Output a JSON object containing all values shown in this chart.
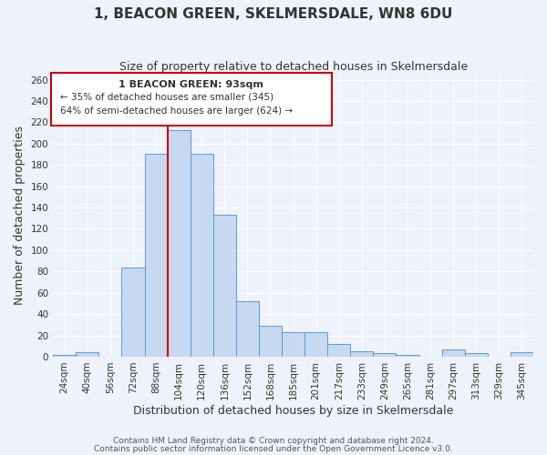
{
  "title": "1, BEACON GREEN, SKELMERSDALE, WN8 6DU",
  "subtitle": "Size of property relative to detached houses in Skelmersdale",
  "xlabel": "Distribution of detached houses by size in Skelmersdale",
  "ylabel": "Number of detached properties",
  "categories": [
    "24sqm",
    "40sqm",
    "56sqm",
    "72sqm",
    "88sqm",
    "104sqm",
    "120sqm",
    "136sqm",
    "152sqm",
    "168sqm",
    "185sqm",
    "201sqm",
    "217sqm",
    "233sqm",
    "249sqm",
    "265sqm",
    "281sqm",
    "297sqm",
    "313sqm",
    "329sqm",
    "345sqm"
  ],
  "bar_heights": [
    2,
    4,
    0,
    84,
    190,
    213,
    190,
    133,
    52,
    29,
    23,
    23,
    12,
    5,
    3,
    2,
    0,
    7,
    3,
    0,
    4
  ],
  "bar_color": "#c6d9f0",
  "bar_edge_color": "#5b9bd5",
  "bar_width": 1.0,
  "vline_x": 4.5,
  "vline_color": "#cc0000",
  "annotation_title": "1 BEACON GREEN: 93sqm",
  "annotation_line1": "← 35% of detached houses are smaller (345)",
  "annotation_line2": "64% of semi-detached houses are larger (624) →",
  "annotation_box_color": "#ffffff",
  "annotation_box_edge": "#cc0000",
  "ylim": [
    0,
    265
  ],
  "yticks": [
    0,
    20,
    40,
    60,
    80,
    100,
    120,
    140,
    160,
    180,
    200,
    220,
    240,
    260
  ],
  "footer1": "Contains HM Land Registry data © Crown copyright and database right 2024.",
  "footer2": "Contains public sector information licensed under the Open Government Licence v3.0.",
  "bg_color": "#eef2fb",
  "grid_color": "#ffffff",
  "title_fontsize": 11,
  "subtitle_fontsize": 9,
  "axis_label_fontsize": 9,
  "tick_fontsize": 7.5,
  "footer_fontsize": 6.5
}
